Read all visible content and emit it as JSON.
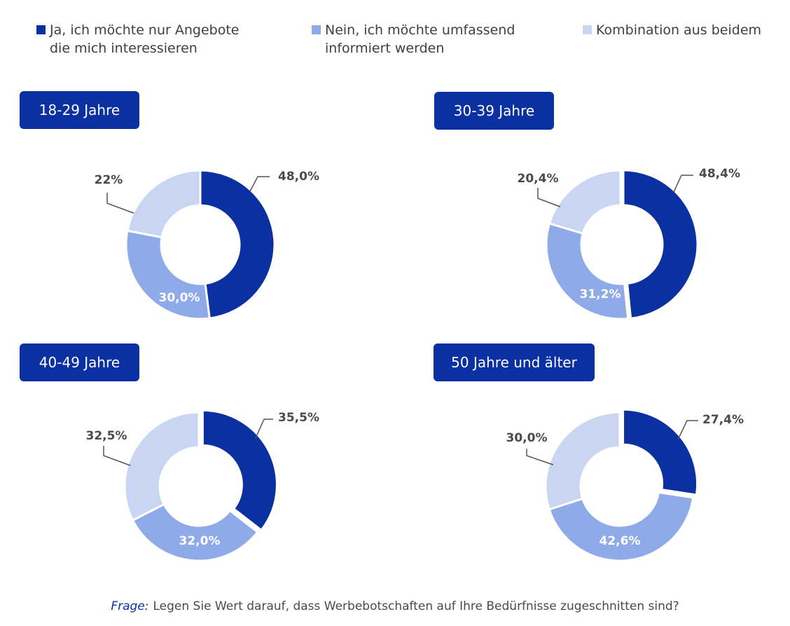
{
  "legend": {
    "items": [
      {
        "label": "Ja, ich möchte nur Angebote\ndie mich interessieren",
        "color": "#0b30a1"
      },
      {
        "label": "Nein, ich möchte umfassend\ninformiert werden",
        "color": "#8faae8"
      },
      {
        "label": "Kombination aus beidem",
        "color": "#c9d5f3"
      }
    ]
  },
  "question": {
    "label": "Frage:",
    "text": "Legen Sie Wert darauf, dass Werbebotschaften auf Ihre Bedürfnisse zugeschnitten sind?"
  },
  "chart_data": [
    {
      "type": "pie",
      "title": "18-29 Jahre",
      "categories": [
        "Ja, ich möchte nur Angebote, die mich interessieren",
        "Nein, ich möchte umfassend informiert werden",
        "Kombination aus beidem"
      ],
      "values": [
        48.0,
        30.0,
        22.0
      ],
      "labels": [
        "48,0%",
        "30,0%",
        "22%"
      ],
      "colors": [
        "#0b30a1",
        "#8faae8",
        "#c9d5f3"
      ]
    },
    {
      "type": "pie",
      "title": "30-39 Jahre",
      "categories": [
        "Ja, ich möchte nur Angebote, die mich interessieren",
        "Nein, ich möchte umfassend informiert werden",
        "Kombination aus beidem"
      ],
      "values": [
        48.4,
        31.2,
        20.4
      ],
      "labels": [
        "48,4%",
        "31,2%",
        "20,4%"
      ],
      "colors": [
        "#0b30a1",
        "#8faae8",
        "#c9d5f3"
      ]
    },
    {
      "type": "pie",
      "title": "40-49 Jahre",
      "categories": [
        "Ja, ich möchte nur Angebote, die mich interessieren",
        "Nein, ich möchte umfassend informiert werden",
        "Kombination aus beidem"
      ],
      "values": [
        35.5,
        32.0,
        32.5
      ],
      "labels": [
        "35,5%",
        "32,0%",
        "32,5%"
      ],
      "colors": [
        "#0b30a1",
        "#8faae8",
        "#c9d5f3"
      ]
    },
    {
      "type": "pie",
      "title": "50 Jahre und älter",
      "categories": [
        "Ja, ich möchte nur Angebote, die mich interessieren",
        "Nein, ich möchte umfassend informiert werden",
        "Kombination aus beidem"
      ],
      "values": [
        27.4,
        42.6,
        30.0
      ],
      "labels": [
        "27,4%",
        "42,6%",
        "30,0%"
      ],
      "colors": [
        "#0b30a1",
        "#8faae8",
        "#c9d5f3"
      ]
    }
  ]
}
